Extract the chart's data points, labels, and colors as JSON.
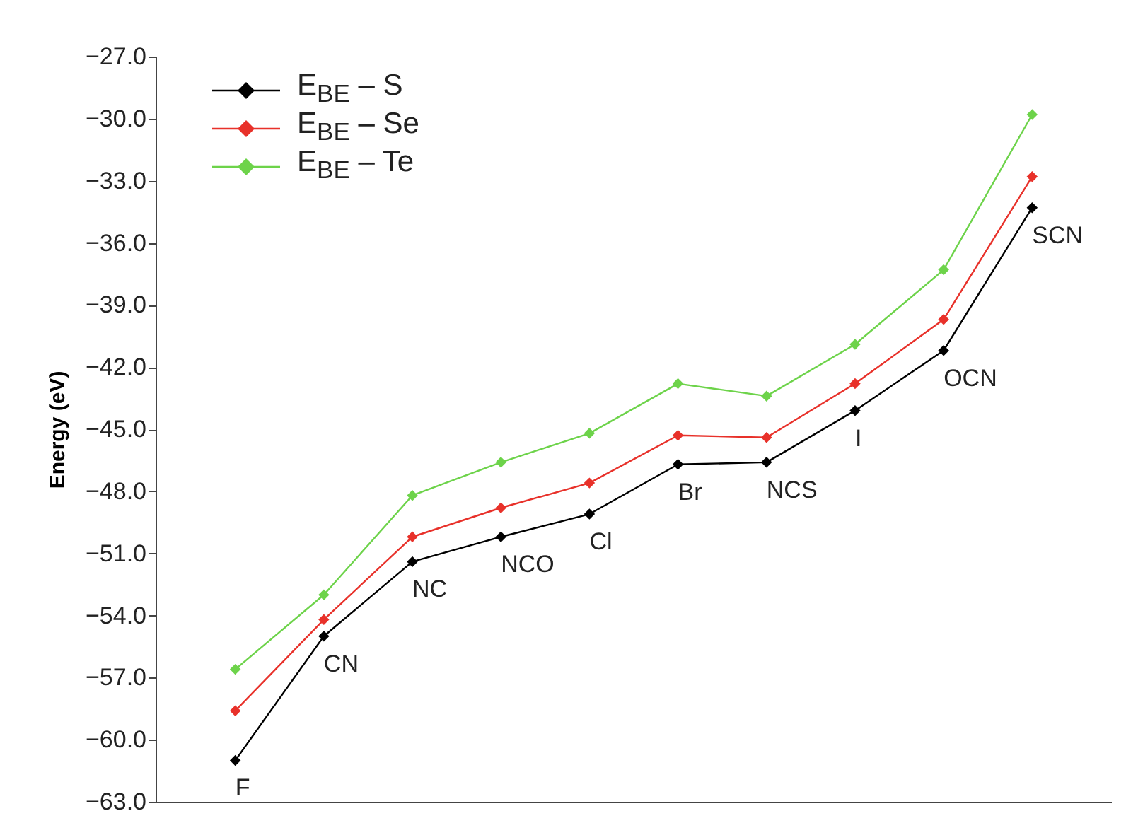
{
  "chart_data": {
    "type": "line",
    "ylabel": "Energy (eV)",
    "categories": [
      null,
      null,
      null,
      null,
      null,
      null,
      null,
      null,
      null,
      null
    ],
    "series": [
      {
        "name": "E$_{BE}$ – S",
        "color": "#000000",
        "values": [
          -61.0,
          -55.0,
          -51.4,
          -50.2,
          -49.1,
          -46.7,
          -46.6,
          -44.1,
          -41.2,
          -34.3
        ],
        "value_labels": [
          "F",
          "CN",
          "NC",
          "NCO",
          "Cl",
          "Br",
          "NCS",
          "I",
          "OCN",
          "SCN"
        ]
      },
      {
        "name": "E$_{BE}$ – Se",
        "color": "#e8312a",
        "values": [
          -58.6,
          -54.2,
          -50.2,
          -48.8,
          -47.6,
          -45.3,
          -45.4,
          -42.8,
          -39.7,
          -32.8
        ]
      },
      {
        "name": "E$_{BE}$ – Te",
        "color": "#6dd34a",
        "values": [
          -56.6,
          -53.0,
          -48.2,
          -46.6,
          -45.2,
          -42.8,
          -43.4,
          -40.9,
          -37.3,
          -29.8
        ]
      }
    ],
    "ylim": [
      -63,
      -27
    ],
    "yticks": [
      {
        "value": -63,
        "label": "−63.0"
      },
      {
        "value": -60,
        "label": "−60.0"
      },
      {
        "value": -57,
        "label": "−57.0"
      },
      {
        "value": -54,
        "label": "−54.0"
      },
      {
        "value": -51,
        "label": "−51.0"
      },
      {
        "value": -48,
        "label": "−48.0"
      },
      {
        "value": -45,
        "label": "−45.0"
      },
      {
        "value": -42,
        "label": "−42.0"
      },
      {
        "value": -39,
        "label": "−39.0"
      },
      {
        "value": -36,
        "label": "−36.0"
      },
      {
        "value": -33,
        "label": "−33.0"
      },
      {
        "value": -30,
        "label": "−30.0"
      },
      {
        "value": -27,
        "label": "−27.0"
      }
    ],
    "tick_labels": "y",
    "grid": false,
    "legend": "top left",
    "marker": "diamond",
    "line_style": "solid"
  }
}
